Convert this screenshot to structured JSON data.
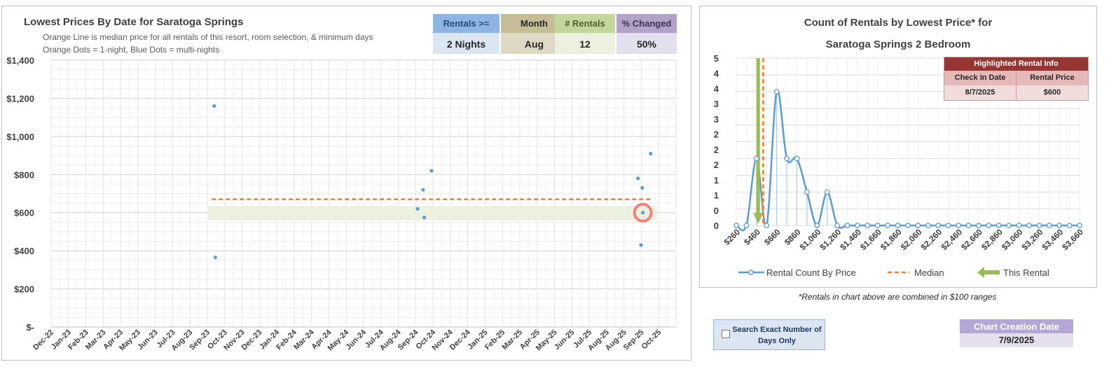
{
  "left_chart": {
    "title": "Lowest Prices By Date for Saratoga Springs",
    "subtitle_1": "Orange Line is median price for all rentals of this resort, room selection, & minimum days",
    "subtitle_2": "Orange Dots = 1-night, Blue Dots = multi-nights"
  },
  "kpis": [
    {
      "label": "Rentals >=",
      "value": "2 Nights",
      "header_bg": "#8eb4e3",
      "header_color": "#1f4e79",
      "value_bg": "#dce6f1"
    },
    {
      "label": "Month",
      "value": "Aug",
      "header_bg": "#c4bd97",
      "header_color": "#262626",
      "value_bg": "#ddd9c4"
    },
    {
      "label": "# Rentals",
      "value": "12",
      "header_bg": "#c3d69b",
      "header_color": "#4f6228",
      "value_bg": "#ebf1de"
    },
    {
      "label": "% Changed",
      "value": "50%",
      "header_bg": "#b3a2c7",
      "header_color": "#403151",
      "value_bg": "#e4dfec"
    }
  ],
  "right_chart": {
    "title_1": "Count of Rentals by Lowest Price* for",
    "title_2": "Saratoga Springs 2 Bedroom",
    "highlight": {
      "title": "Highlighted Rental Info",
      "col1_label": "Check In Date",
      "col2_label": "Rental Price",
      "check_in": "8/7/2025",
      "price": "$600"
    },
    "legend": {
      "series": "Rental Count By Price",
      "median": "Median",
      "this_rental": "This Rental"
    }
  },
  "footnote": "*Rentals in chart above are combined in $100 ranges",
  "search_option": {
    "label": "Search Exact Number of Days Only",
    "checked": false
  },
  "creation": {
    "label": "Chart Creation Date",
    "value": "7/9/2025"
  },
  "chart_data": [
    {
      "type": "scatter",
      "title": "Lowest Prices By Date for Saratoga Springs",
      "x_ticks": [
        "Dec-22",
        "Jan-23",
        "Feb-23",
        "Mar-23",
        "Apr-23",
        "May-23",
        "Jun-23",
        "Jul-23",
        "Aug-23",
        "Sep-23",
        "Oct-23",
        "Nov-23",
        "Dec-23",
        "Jan-24",
        "Feb-24",
        "Mar-24",
        "Apr-24",
        "May-24",
        "Jun-24",
        "Jul-24",
        "Aug-24",
        "Sep-24",
        "Oct-24",
        "Nov-24",
        "Dec-24",
        "Jan-25",
        "Feb-25",
        "Mar-25",
        "Apr-25",
        "May-25",
        "Jun-25",
        "Jul-25",
        "Aug-25",
        "Aug-25",
        "Sep-25",
        "Oct-25"
      ],
      "y_ticks": [
        "$-",
        "$200",
        "$400",
        "$600",
        "$800",
        "$1,000",
        "$1,200",
        "$1,400"
      ],
      "ylim": [
        0,
        1400
      ],
      "grid": true,
      "series": [
        {
          "name": "Blue Dots = multi-nights",
          "color": "#5b9bd5",
          "points": [
            {
              "date": "2023-08-28",
              "price": 1160
            },
            {
              "date": "2023-08-30",
              "price": 365
            },
            {
              "date": "2024-07-30",
              "price": 620
            },
            {
              "date": "2024-08-08",
              "price": 720
            },
            {
              "date": "2024-08-10",
              "price": 575
            },
            {
              "date": "2024-08-22",
              "price": 820
            },
            {
              "date": "2025-07-30",
              "price": 780
            },
            {
              "date": "2025-08-04",
              "price": 430
            },
            {
              "date": "2025-08-06",
              "price": 730
            },
            {
              "date": "2025-08-07",
              "price": 600
            },
            {
              "date": "2025-08-20",
              "price": 910
            }
          ]
        }
      ],
      "median_price": 670,
      "median_color": "#ed7d31",
      "median_range": [
        "2023-08-24",
        "2025-08-22"
      ],
      "band": {
        "low": 560,
        "high": 635,
        "from": "2023-08-18",
        "to": "2025-08-30",
        "color": "#ebf1de"
      },
      "highlight_point": {
        "date": "2025-08-07",
        "price": 600,
        "color": "#f4817c"
      }
    },
    {
      "type": "line",
      "title": "Count of Rentals by Lowest Price* for Saratoga Springs 2 Bedroom",
      "x_tick_labels": [
        "$260",
        "$460",
        "$660",
        "$860",
        "$1,060",
        "$1,260",
        "$1,460",
        "$1,660",
        "$1,860",
        "$2,060",
        "$2,260",
        "$2,460",
        "$2,660",
        "$2,860",
        "$3,060",
        "$3,260",
        "$3,460",
        "$3,660"
      ],
      "x": [
        260,
        360,
        460,
        560,
        660,
        760,
        860,
        960,
        1060,
        1160,
        1260,
        1360,
        1460,
        1560,
        1660,
        1760,
        1860,
        1960,
        2060,
        2160,
        2260,
        2360,
        2460,
        2560,
        2660,
        2760,
        2860,
        2960,
        3060,
        3160,
        3260,
        3360,
        3460,
        3560,
        3660
      ],
      "series": [
        {
          "name": "Rental Count By Price",
          "color": "#5b9bd5",
          "values": [
            0,
            0,
            2,
            0,
            4,
            2,
            2,
            1,
            0,
            1,
            0,
            0,
            0,
            0,
            0,
            0,
            0,
            0,
            0,
            0,
            0,
            0,
            0,
            0,
            0,
            0,
            0,
            0,
            0,
            0,
            0,
            0,
            0,
            0,
            0
          ]
        }
      ],
      "y_tick_labels": [
        "0",
        "0",
        "1",
        "1",
        "2",
        "2",
        "2",
        "3",
        "3",
        "4",
        "4",
        "5"
      ],
      "ylim": [
        0,
        5
      ],
      "median": 610,
      "median_color": "#ed7d31",
      "this_rental": 560,
      "this_rental_color": "#9bbb59",
      "grid": true,
      "legend": "bottom"
    }
  ]
}
